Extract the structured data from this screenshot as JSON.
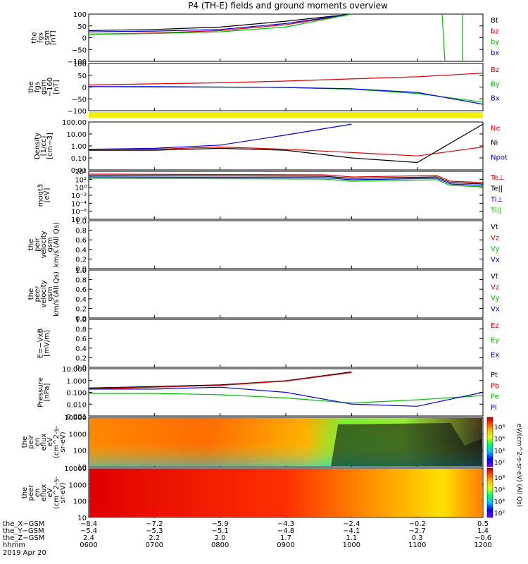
{
  "title": "P4 (TH-E) fields and ground moments overview",
  "panels": [
    {
      "id": "fgs",
      "ylabel": [
        "the",
        "fgs",
        "gsm",
        "[nT]"
      ],
      "ticks": [
        "100",
        "50",
        "0",
        "−50",
        "−100"
      ],
      "legend": [
        {
          "t": "Bt",
          "c": "#000000"
        },
        {
          "t": "bz",
          "c": "#e00000"
        },
        {
          "t": "by",
          "c": "#00c000"
        },
        {
          "t": "bx",
          "c": "#0000e0"
        }
      ]
    },
    {
      "id": "fgs2",
      "ylabel": [
        "the",
        "fgs",
        "gsm",
        "−160",
        "[nT]"
      ],
      "ticks": [
        "100",
        "50",
        "0",
        "−50",
        "−100"
      ],
      "legend": [
        {
          "t": "Bz",
          "c": "#e00000"
        },
        {
          "t": "By",
          "c": "#00c000"
        },
        {
          "t": "Bx",
          "c": "#0000e0"
        }
      ]
    },
    {
      "id": "density",
      "ylabel": [
        "Density",
        "[1/cc]",
        "[cm−3]"
      ],
      "ticks": [
        "100.00",
        "10.00",
        "1.00",
        "0.10",
        "0.01"
      ],
      "legend": [
        {
          "t": "Ne",
          "c": "#e00000"
        },
        {
          "t": "Ni",
          "c": "#000000"
        },
        {
          "t": "Npot",
          "c": "#0000e0"
        }
      ]
    },
    {
      "id": "temp",
      "ylabel": [
        "moqt3",
        "[eV]"
      ],
      "ticks": [
        "10⁴",
        "10²",
        "10⁰",
        "10⁻²",
        "10⁻⁴",
        "10⁻⁶",
        "10⁻⁸"
      ],
      "legend": [
        {
          "t": "Te⊥",
          "c": "#e00000"
        },
        {
          "t": "Te||",
          "c": "#000000"
        },
        {
          "t": "Ti⊥",
          "c": "#0000e0"
        },
        {
          "t": "Ti||",
          "c": "#00c000"
        }
      ]
    },
    {
      "id": "vpeir",
      "ylabel": [
        "the",
        "peir",
        "velocity",
        "gsm",
        "km/s (All Qs)"
      ],
      "ticks": [
        "1.0",
        "0.8",
        "0.6",
        "0.4",
        "0.2",
        "0.0"
      ],
      "legend": [
        {
          "t": "Vt",
          "c": "#000000"
        },
        {
          "t": "Vz",
          "c": "#e00000"
        },
        {
          "t": "Vy",
          "c": "#00c000"
        },
        {
          "t": "Vx",
          "c": "#0000e0"
        }
      ]
    },
    {
      "id": "vpeer",
      "ylabel": [
        "the",
        "peer",
        "velocity",
        "gsm",
        "km/s (All Qs)"
      ],
      "ticks": [
        "1.0",
        "0.8",
        "0.6",
        "0.4",
        "0.2",
        "0.0"
      ],
      "legend": [
        {
          "t": "Vt",
          "c": "#000000"
        },
        {
          "t": "Vz",
          "c": "#e00000"
        },
        {
          "t": "Vy",
          "c": "#00c000"
        },
        {
          "t": "Vx",
          "c": "#0000e0"
        }
      ]
    },
    {
      "id": "efield",
      "ylabel": [
        "E=−VxB",
        "[mV/m]"
      ],
      "ticks": [
        "1.0",
        "0.8",
        "0.6",
        "0.4",
        "0.2",
        "0.0"
      ],
      "legend": [
        {
          "t": "Ez",
          "c": "#e00000"
        },
        {
          "t": "Ey",
          "c": "#00c000"
        },
        {
          "t": "Ex",
          "c": "#0000e0"
        }
      ]
    },
    {
      "id": "pressure",
      "ylabel": [
        "Pressure",
        "[nPa]"
      ],
      "ticks": [
        "10.000",
        "1.000",
        "0.100",
        "0.010",
        "0.001"
      ],
      "legend": [
        {
          "t": "Pt",
          "c": "#000000"
        },
        {
          "t": "Pb",
          "c": "#e00000"
        },
        {
          "t": "Pe",
          "c": "#00c000"
        },
        {
          "t": "Pi",
          "c": "#0000e0"
        }
      ]
    },
    {
      "id": "spec_i",
      "ylabel": [
        "the",
        "peir",
        "en",
        "eflux",
        "eV",
        "(cm^2-s-",
        "sr-eV)"
      ],
      "ticks": [
        "10000",
        "1000",
        "100",
        "10"
      ],
      "cbar_ticks": [
        "10⁸",
        "10⁶",
        "10⁴",
        "10²"
      ],
      "cbar_label": "eV/(cm^2-s-sr-eV) (All Qs)"
    },
    {
      "id": "spec_e",
      "ylabel": [
        "the",
        "peer",
        "en",
        "eflux",
        "eV",
        "(cm^2-s-",
        "sr-eV)"
      ],
      "ticks": [
        "10000",
        "1000",
        "100",
        "10"
      ],
      "cbar_ticks": [
        "10⁸",
        "10⁶",
        "10⁴",
        "10²"
      ],
      "cbar_label": "eV/(cm^2-s-sr-eV)"
    }
  ],
  "xaxis": {
    "rows": [
      {
        "label": "the_X−GSM",
        "vals": [
          "−8.4",
          "−7.2",
          "−5.9",
          "−4.3",
          "−2.4",
          "−0.2",
          "0.5"
        ]
      },
      {
        "label": "the_Y−GSM",
        "vals": [
          "−5.4",
          "−5.3",
          "−5.1",
          "−4.8",
          "−4.1",
          "−2.7",
          "1.4"
        ]
      },
      {
        "label": "the_Z−GSM",
        "vals": [
          "2.4",
          "2.2",
          "2.0",
          "1.7",
          "1.1",
          "0.3",
          "−0.6"
        ]
      },
      {
        "label": "hhmm",
        "vals": [
          "0600",
          "0700",
          "0800",
          "0900",
          "1000",
          "1100",
          "1200"
        ]
      }
    ],
    "date": "2019 Apr 20"
  },
  "chart_data": {
    "type": "line",
    "x_label": "hhmm",
    "x": [
      "0600",
      "0700",
      "0800",
      "0900",
      "1000",
      "1100",
      "1200"
    ],
    "series": [
      {
        "name": "Bt",
        "panel": "fgs",
        "values": [
          30,
          35,
          45,
          70,
          100,
          null,
          null
        ]
      },
      {
        "name": "bz",
        "panel": "fgs",
        "values": [
          15,
          20,
          30,
          55,
          100,
          null,
          null
        ]
      },
      {
        "name": "by",
        "panel": "fgs",
        "values": [
          15,
          18,
          25,
          45,
          100,
          null,
          null
        ]
      },
      {
        "name": "bx",
        "panel": "fgs",
        "values": [
          25,
          28,
          35,
          60,
          100,
          null,
          null
        ]
      },
      {
        "name": "Bz",
        "panel": "fgs2",
        "values": [
          0,
          5,
          10,
          18,
          28,
          38,
          55
        ]
      },
      {
        "name": "By",
        "panel": "fgs2",
        "values": [
          -8,
          -10,
          -10,
          -12,
          -20,
          -40,
          -80
        ]
      },
      {
        "name": "Bx",
        "panel": "fgs2",
        "values": [
          -8,
          -8,
          -10,
          -12,
          -18,
          -35,
          -90
        ]
      },
      {
        "name": "Ne",
        "panel": "density",
        "values": [
          0.5,
          0.5,
          0.8,
          0.5,
          0.25,
          0.12,
          0.8
        ]
      },
      {
        "name": "Ni",
        "panel": "density",
        "values": [
          0.4,
          0.4,
          0.6,
          0.4,
          0.08,
          0.03,
          100
        ]
      },
      {
        "name": "Npot",
        "panel": "density",
        "values": [
          0.5,
          0.6,
          1.2,
          10,
          100,
          null,
          null
        ]
      },
      {
        "name": "Pt",
        "panel": "pressure",
        "values": [
          0.25,
          0.35,
          0.5,
          1.2,
          8,
          null,
          null
        ]
      },
      {
        "name": "Pb",
        "panel": "pressure",
        "values": [
          0.2,
          0.3,
          0.45,
          1.1,
          7,
          null,
          null
        ]
      },
      {
        "name": "Pe",
        "panel": "pressure",
        "values": [
          0.08,
          0.08,
          0.06,
          0.03,
          0.01,
          0.02,
          0.05
        ]
      },
      {
        "name": "Pi",
        "panel": "pressure",
        "values": [
          0.2,
          0.2,
          0.3,
          0.1,
          0.008,
          0.005,
          0.1
        ]
      }
    ]
  }
}
